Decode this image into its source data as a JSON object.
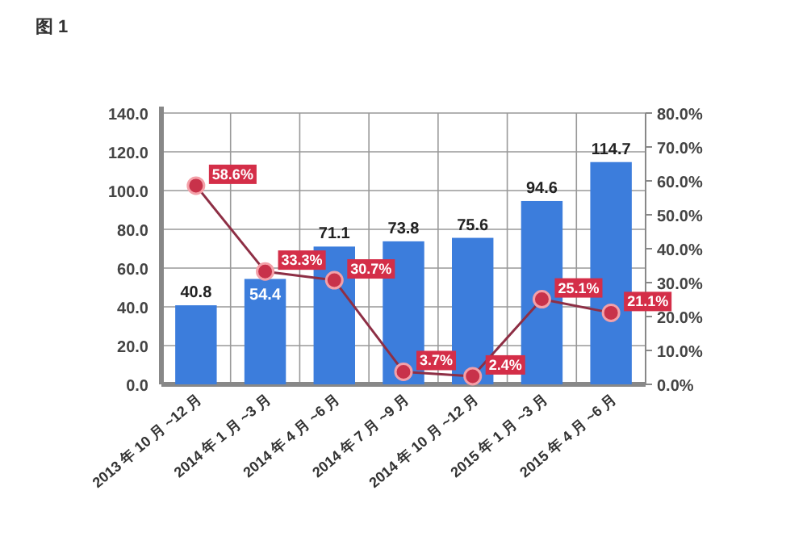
{
  "chart_data": {
    "type": "bar",
    "title": "图 1",
    "categories": [
      "2013 年 10 月 ~12 月",
      "2014 年 1 月 ~3 月",
      "2014 年 4 月 ~6 月",
      "2014 年 7 月 ~9 月",
      "2014 年 10 月 ~12 月",
      "2015 年 1 月 ~3 月",
      "2015 年 4 月 ~6 月"
    ],
    "series": [
      {
        "color": "#3c7ddc",
        "values": [
          40.8,
          54.4,
          71.1,
          73.8,
          75.6,
          94.6,
          114.7
        ],
        "value_labels": [
          "40.8",
          "54.4",
          "71.1",
          "73.8",
          "75.6",
          "94.6",
          "114.7"
        ]
      },
      {
        "type": "line",
        "axis": "y2",
        "color": "#8e2f45",
        "marker": "circle",
        "values": [
          58.6,
          33.3,
          30.7,
          3.7,
          2.4,
          25.1,
          21.1
        ],
        "value_labels": [
          "58.6%",
          "33.3%",
          "30.7%",
          "3.7%",
          "2.4%",
          "25.1%",
          "21.1%"
        ]
      }
    ],
    "ylim": [
      0,
      140
    ],
    "yticks": [
      {
        "value": 0,
        "label": "0.0"
      },
      {
        "value": 20,
        "label": "20.0"
      },
      {
        "value": 40,
        "label": "40.0"
      },
      {
        "value": 60,
        "label": "60.0"
      },
      {
        "value": 80,
        "label": "80.0"
      },
      {
        "value": 100,
        "label": "100.0"
      },
      {
        "value": 120,
        "label": "120.0"
      },
      {
        "value": 140,
        "label": "140.0"
      }
    ],
    "y2lim": [
      0,
      80
    ],
    "y2ticks": [
      {
        "value": 0,
        "label": "0.0%"
      },
      {
        "value": 10,
        "label": "10.0%"
      },
      {
        "value": 20,
        "label": "20.0%"
      },
      {
        "value": 30,
        "label": "30.0%"
      },
      {
        "value": 40,
        "label": "40.0%"
      },
      {
        "value": 50,
        "label": "50.0%"
      },
      {
        "value": 60,
        "label": "60.0%"
      },
      {
        "value": 70,
        "label": "70.0%"
      },
      {
        "value": 80,
        "label": "80.0%"
      }
    ],
    "grid": true
  }
}
